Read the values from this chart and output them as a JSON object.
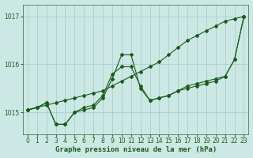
{
  "title": "Graphe pression niveau de la mer (hPa)",
  "background_color": "#cce8e4",
  "grid_color": "#aad0cc",
  "line_color": "#1a5c1a",
  "ylim": [
    1014.55,
    1017.25
  ],
  "xlim": [
    -0.5,
    23.5
  ],
  "yticks": [
    1015,
    1016,
    1017
  ],
  "xticks": [
    0,
    1,
    2,
    3,
    4,
    5,
    6,
    7,
    8,
    9,
    10,
    11,
    12,
    13,
    14,
    15,
    16,
    17,
    18,
    19,
    20,
    21,
    22,
    23
  ],
  "series": [
    {
      "x": [
        0,
        1,
        2,
        3,
        4,
        5,
        6,
        7,
        8,
        9,
        10,
        11,
        12,
        13,
        14,
        15,
        16,
        17,
        18,
        19,
        20,
        21,
        22,
        23
      ],
      "y": [
        1015.05,
        1015.1,
        1015.15,
        1015.2,
        1015.25,
        1015.3,
        1015.35,
        1015.4,
        1015.45,
        1015.55,
        1015.65,
        1015.75,
        1015.85,
        1015.95,
        1016.05,
        1016.2,
        1016.35,
        1016.5,
        1016.6,
        1016.7,
        1016.8,
        1016.9,
        1016.95,
        1017.0
      ]
    },
    {
      "x": [
        0,
        1,
        2,
        3,
        4,
        5,
        6,
        7,
        8,
        9,
        10,
        11,
        12,
        13,
        14,
        15,
        16,
        17,
        18,
        19,
        20,
        21,
        22,
        23
      ],
      "y": [
        1015.05,
        1015.1,
        1015.2,
        1014.75,
        1014.75,
        1015.0,
        1015.05,
        1015.1,
        1015.3,
        1015.7,
        1016.2,
        1016.2,
        1015.5,
        1015.25,
        1015.3,
        1015.35,
        1015.45,
        1015.5,
        1015.55,
        1015.6,
        1015.65,
        1015.75,
        1016.1,
        1017.0
      ]
    },
    {
      "x": [
        0,
        1,
        2,
        3,
        4,
        5,
        6,
        7,
        8,
        9,
        10,
        11,
        12,
        13,
        14,
        15,
        16,
        17,
        18,
        19,
        20,
        21,
        22,
        23
      ],
      "y": [
        1015.05,
        1015.1,
        1015.2,
        1014.75,
        1014.75,
        1015.0,
        1015.1,
        1015.15,
        1015.35,
        1015.8,
        1015.95,
        1015.95,
        1015.55,
        1015.25,
        1015.3,
        1015.35,
        1015.45,
        1015.55,
        1015.6,
        1015.65,
        1015.7,
        1015.75,
        1016.1,
        1017.0
      ]
    }
  ],
  "title_fontsize": 6.5,
  "tick_fontsize": 5.5,
  "marker_size": 2.0,
  "linewidth": 0.8
}
